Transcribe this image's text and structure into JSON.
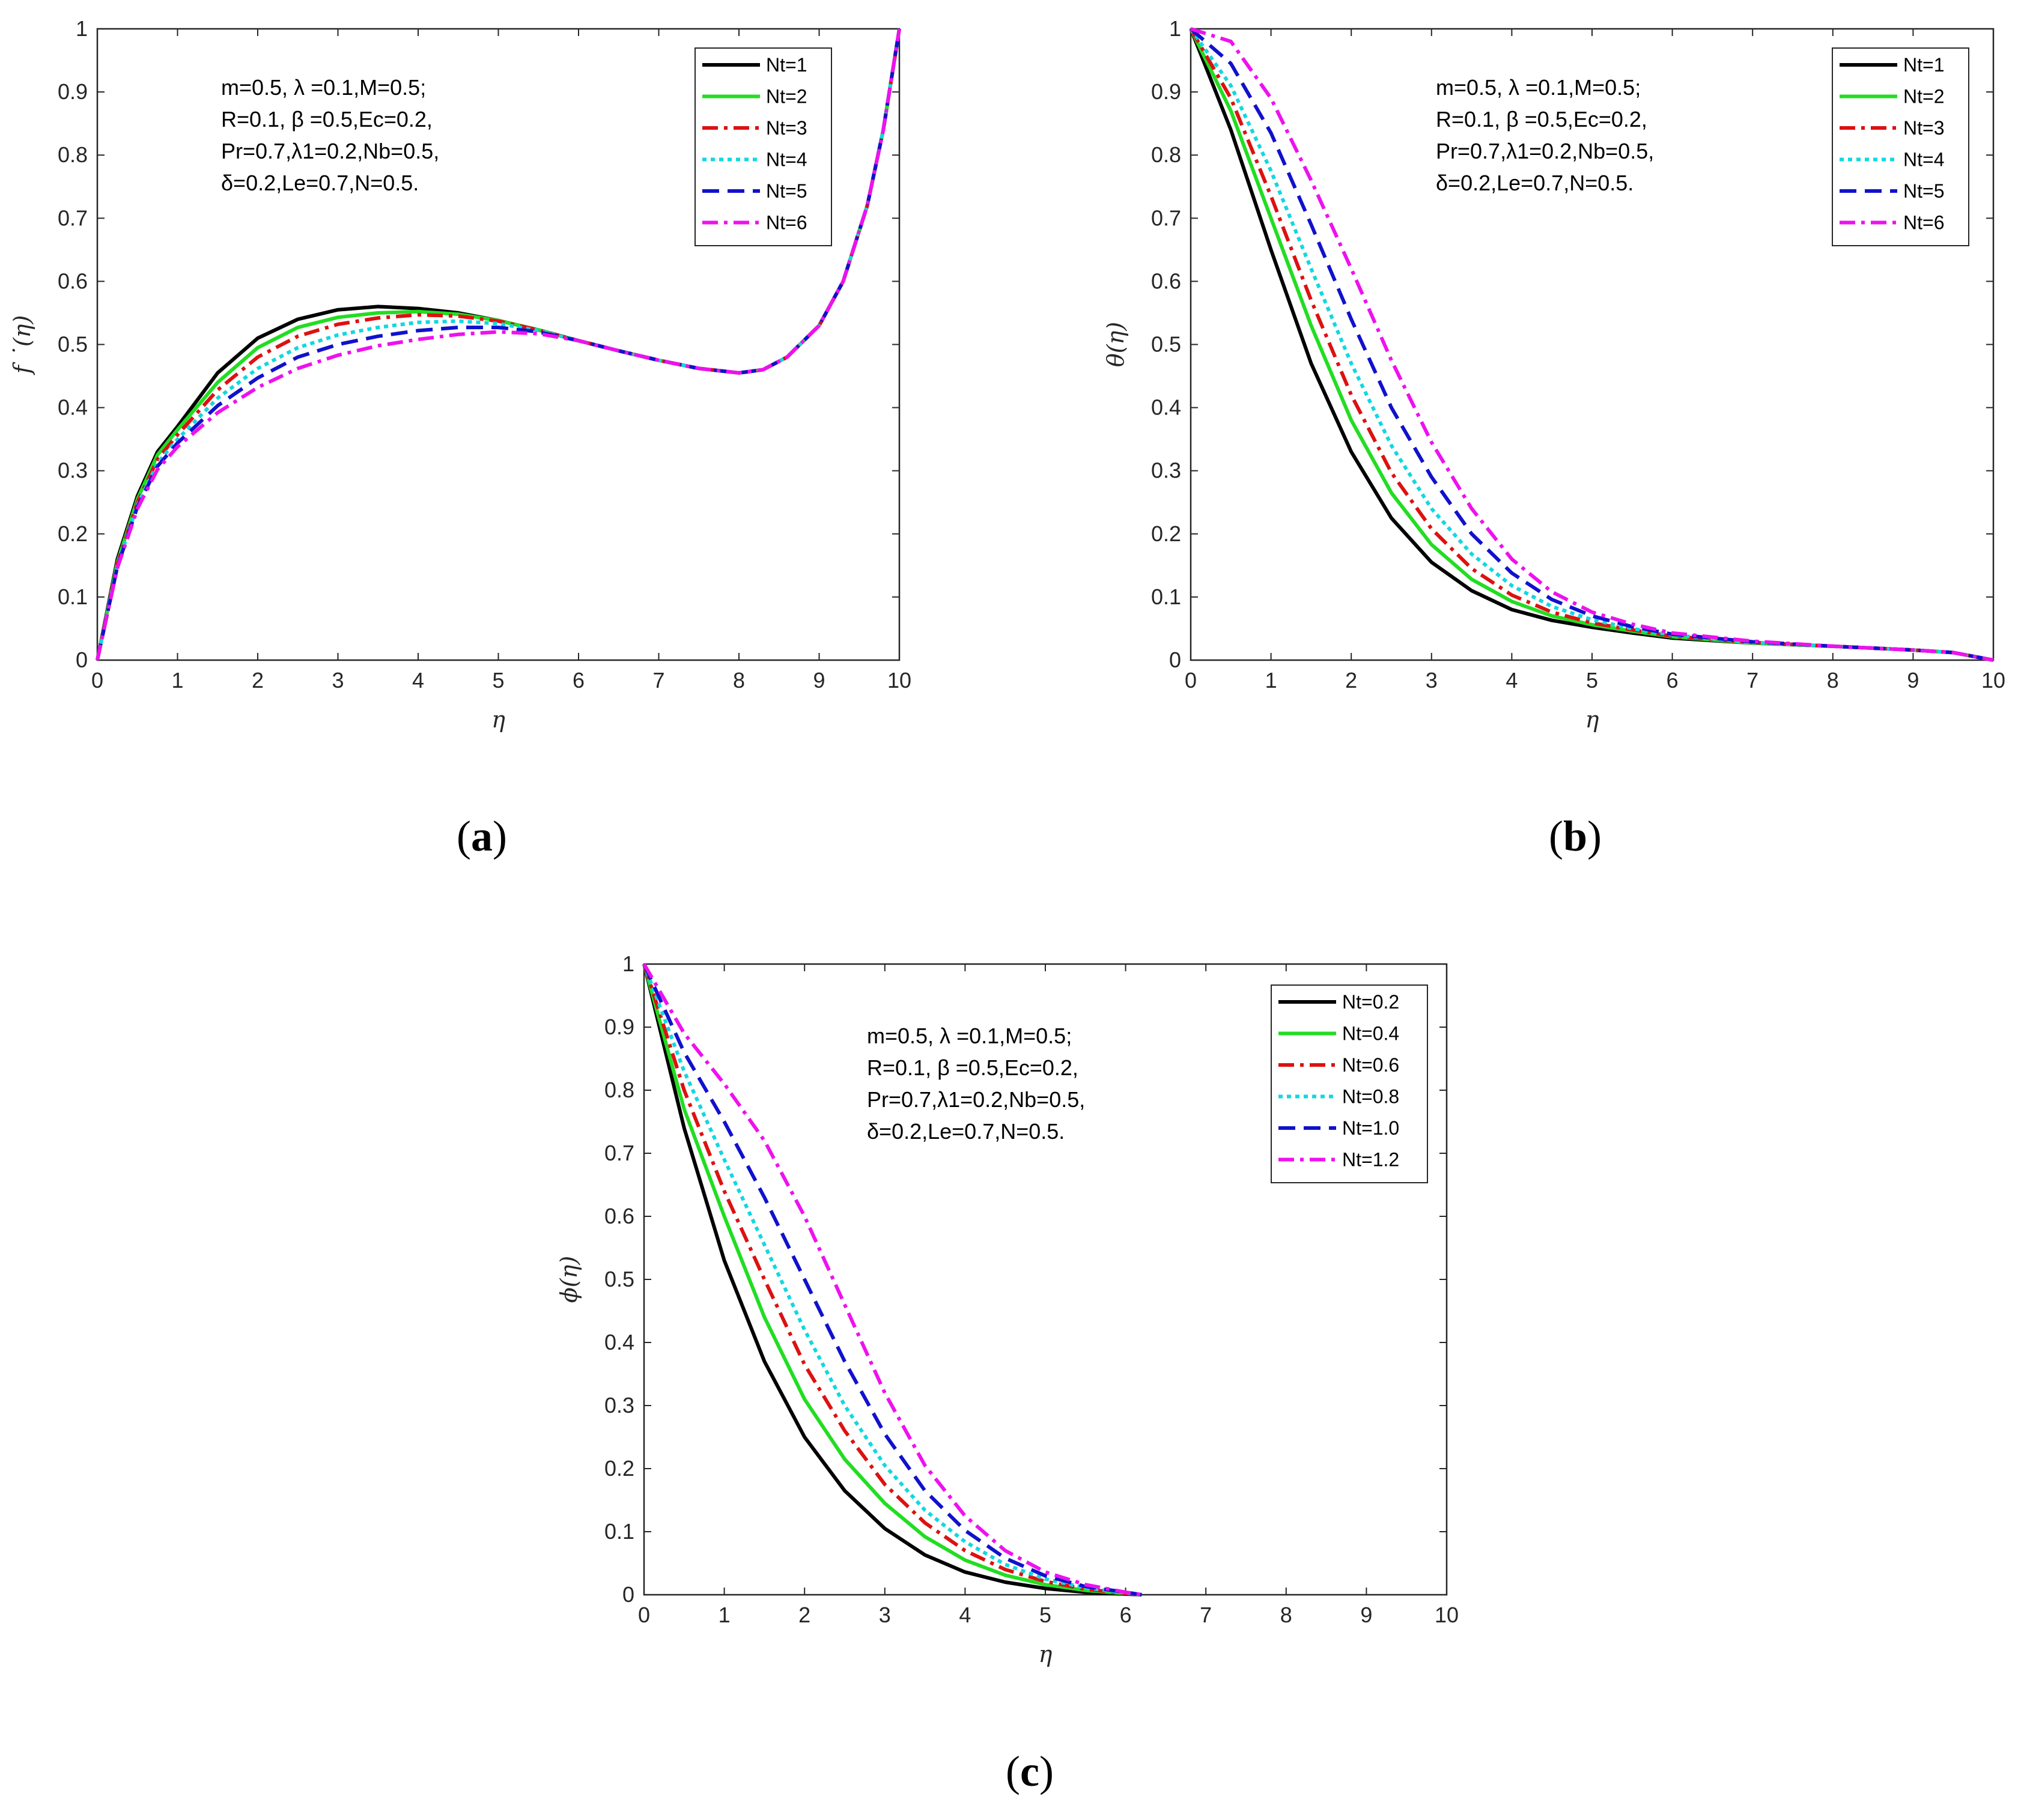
{
  "colors": {
    "black": "#000000",
    "green": "#22dd22",
    "red": "#dd1111",
    "cyan": "#11d8e0",
    "blue": "#1111cc",
    "magenta": "#ee11ee"
  },
  "chart_data": [
    {
      "id": "a",
      "type": "line",
      "panel_label": "a",
      "xlabel": "η",
      "ylabel": "f ˙(η)",
      "xlim": [
        0,
        10
      ],
      "ylim": [
        0,
        1
      ],
      "xticks": [
        "0",
        "1",
        "2",
        "3",
        "4",
        "5",
        "6",
        "7",
        "8",
        "9",
        "10"
      ],
      "yticks": [
        "0",
        "0.1",
        "0.2",
        "0.3",
        "0.4",
        "0.5",
        "0.6",
        "0.7",
        "0.8",
        "0.9",
        "1"
      ],
      "annotation": [
        "m=0.5, λ =0.1,M=0.5;",
        "R=0.1, β =0.5,Ec=0.2,",
        "Pr=0.7,λ1=0.2,Nb=0.5,",
        "δ=0.2,Le=0.7,N=0.5."
      ],
      "legend_position": "top-right",
      "series": [
        {
          "name": "Nt=1",
          "style": "solid",
          "color": "black",
          "x": [
            0,
            0.25,
            0.5,
            0.75,
            1,
            1.5,
            2,
            2.5,
            3,
            3.5,
            4,
            4.5,
            5,
            5.5,
            6,
            6.5,
            7,
            7.5,
            8,
            8.3,
            8.6,
            9,
            9.3,
            9.6,
            9.8,
            10
          ],
          "y": [
            0,
            0.16,
            0.26,
            0.33,
            0.37,
            0.455,
            0.51,
            0.54,
            0.555,
            0.56,
            0.557,
            0.55,
            0.538,
            0.523,
            0.506,
            0.49,
            0.475,
            0.462,
            0.455,
            0.46,
            0.48,
            0.53,
            0.6,
            0.72,
            0.84,
            1.0
          ]
        },
        {
          "name": "Nt=2",
          "style": "solid",
          "color": "green",
          "x": [
            0,
            0.25,
            0.5,
            0.75,
            1,
            1.5,
            2,
            2.5,
            3,
            3.5,
            4,
            4.5,
            5,
            5.5,
            6,
            6.5,
            7,
            7.5,
            8,
            8.3,
            8.6,
            9,
            9.3,
            9.6,
            9.8,
            10
          ],
          "y": [
            0,
            0.155,
            0.255,
            0.325,
            0.365,
            0.44,
            0.495,
            0.527,
            0.543,
            0.55,
            0.552,
            0.548,
            0.538,
            0.523,
            0.506,
            0.49,
            0.475,
            0.462,
            0.455,
            0.46,
            0.48,
            0.53,
            0.6,
            0.72,
            0.84,
            1.0
          ]
        },
        {
          "name": "Nt=3",
          "style": "dashdot",
          "color": "red",
          "x": [
            0,
            0.25,
            0.5,
            0.75,
            1,
            1.5,
            2,
            2.5,
            3,
            3.5,
            4,
            4.5,
            5,
            5.5,
            6,
            6.5,
            7,
            7.5,
            8,
            8.3,
            8.6,
            9,
            9.3,
            9.6,
            9.8,
            10
          ],
          "y": [
            0,
            0.152,
            0.25,
            0.318,
            0.357,
            0.428,
            0.48,
            0.513,
            0.532,
            0.542,
            0.547,
            0.545,
            0.537,
            0.523,
            0.506,
            0.49,
            0.475,
            0.462,
            0.455,
            0.46,
            0.48,
            0.53,
            0.6,
            0.72,
            0.84,
            1.0
          ]
        },
        {
          "name": "Nt=4",
          "style": "dotted",
          "color": "cyan",
          "x": [
            0,
            0.25,
            0.5,
            0.75,
            1,
            1.5,
            2,
            2.5,
            3,
            3.5,
            4,
            4.5,
            5,
            5.5,
            6,
            6.5,
            7,
            7.5,
            8,
            8.3,
            8.6,
            9,
            9.3,
            9.6,
            9.8,
            10
          ],
          "y": [
            0,
            0.15,
            0.246,
            0.312,
            0.35,
            0.415,
            0.462,
            0.495,
            0.515,
            0.527,
            0.535,
            0.537,
            0.533,
            0.522,
            0.506,
            0.49,
            0.475,
            0.462,
            0.455,
            0.46,
            0.48,
            0.53,
            0.6,
            0.72,
            0.84,
            1.0
          ]
        },
        {
          "name": "Nt=5",
          "style": "dashed",
          "color": "blue",
          "x": [
            0,
            0.25,
            0.5,
            0.75,
            1,
            1.5,
            2,
            2.5,
            3,
            3.5,
            4,
            4.5,
            5,
            5.5,
            6,
            6.5,
            7,
            7.5,
            8,
            8.3,
            8.6,
            9,
            9.3,
            9.6,
            9.8,
            10
          ],
          "y": [
            0,
            0.148,
            0.243,
            0.307,
            0.344,
            0.403,
            0.447,
            0.48,
            0.5,
            0.513,
            0.522,
            0.527,
            0.527,
            0.52,
            0.506,
            0.49,
            0.475,
            0.462,
            0.455,
            0.46,
            0.48,
            0.53,
            0.6,
            0.72,
            0.84,
            1.0
          ]
        },
        {
          "name": "Nt=6",
          "style": "dashdot",
          "color": "magenta",
          "x": [
            0,
            0.25,
            0.5,
            0.75,
            1,
            1.5,
            2,
            2.5,
            3,
            3.5,
            4,
            4.5,
            5,
            5.5,
            6,
            6.5,
            7,
            7.5,
            8,
            8.3,
            8.6,
            9,
            9.3,
            9.6,
            9.8,
            10
          ],
          "y": [
            0,
            0.146,
            0.24,
            0.302,
            0.338,
            0.392,
            0.432,
            0.462,
            0.483,
            0.498,
            0.508,
            0.516,
            0.52,
            0.517,
            0.506,
            0.49,
            0.475,
            0.462,
            0.455,
            0.46,
            0.48,
            0.53,
            0.6,
            0.72,
            0.84,
            1.0
          ]
        }
      ]
    },
    {
      "id": "b",
      "type": "line",
      "panel_label": "b",
      "xlabel": "η",
      "ylabel": "θ(η)",
      "xlim": [
        0,
        10
      ],
      "ylim": [
        0,
        1
      ],
      "xticks": [
        "0",
        "1",
        "2",
        "3",
        "4",
        "5",
        "6",
        "7",
        "8",
        "9",
        "10"
      ],
      "yticks": [
        "0",
        "0.1",
        "0.2",
        "0.3",
        "0.4",
        "0.5",
        "0.6",
        "0.7",
        "0.8",
        "0.9",
        "1"
      ],
      "annotation": [
        "m=0.5, λ =0.1,M=0.5;",
        "R=0.1, β =0.5,Ec=0.2,",
        "Pr=0.7,λ1=0.2,Nb=0.5,",
        "δ=0.2,Le=0.7,N=0.5."
      ],
      "legend_position": "top-right",
      "series": [
        {
          "name": "Nt=1",
          "style": "solid",
          "color": "black",
          "x": [
            0,
            0.5,
            1,
            1.5,
            2,
            2.5,
            3,
            3.5,
            4,
            4.5,
            5,
            5.5,
            6,
            7,
            8,
            9,
            9.5,
            10
          ],
          "y": [
            1.0,
            0.84,
            0.65,
            0.47,
            0.33,
            0.225,
            0.155,
            0.11,
            0.08,
            0.063,
            0.052,
            0.043,
            0.035,
            0.027,
            0.022,
            0.016,
            0.012,
            0.0
          ]
        },
        {
          "name": "Nt=2",
          "style": "solid",
          "color": "green",
          "x": [
            0,
            0.5,
            1,
            1.5,
            2,
            2.5,
            3,
            3.5,
            4,
            4.5,
            5,
            5.5,
            6,
            7,
            8,
            9,
            9.5,
            10
          ],
          "y": [
            1.0,
            0.87,
            0.7,
            0.53,
            0.38,
            0.265,
            0.183,
            0.128,
            0.093,
            0.07,
            0.056,
            0.046,
            0.037,
            0.027,
            0.022,
            0.016,
            0.012,
            0.0
          ]
        },
        {
          "name": "Nt=3",
          "style": "dashdot",
          "color": "red",
          "x": [
            0,
            0.5,
            1,
            1.5,
            2,
            2.5,
            3,
            3.5,
            4,
            4.5,
            5,
            5.5,
            6,
            7,
            8,
            9,
            9.5,
            10
          ],
          "y": [
            1.0,
            0.89,
            0.735,
            0.57,
            0.42,
            0.297,
            0.208,
            0.145,
            0.103,
            0.076,
            0.059,
            0.048,
            0.038,
            0.028,
            0.022,
            0.016,
            0.012,
            0.0
          ]
        },
        {
          "name": "Nt=4",
          "style": "dotted",
          "color": "cyan",
          "x": [
            0,
            0.5,
            1,
            1.5,
            2,
            2.5,
            3,
            3.5,
            4,
            4.5,
            5,
            5.5,
            6,
            7,
            8,
            9,
            9.5,
            10
          ],
          "y": [
            1.0,
            0.91,
            0.775,
            0.62,
            0.47,
            0.34,
            0.24,
            0.168,
            0.118,
            0.085,
            0.064,
            0.05,
            0.04,
            0.028,
            0.022,
            0.016,
            0.012,
            0.0
          ]
        },
        {
          "name": "Nt=5",
          "style": "dashed",
          "color": "blue",
          "x": [
            0,
            0.5,
            1,
            1.5,
            2,
            2.5,
            3,
            3.5,
            4,
            4.5,
            5,
            5.5,
            6,
            7,
            8,
            9,
            9.5,
            10
          ],
          "y": [
            1.0,
            0.945,
            0.835,
            0.69,
            0.54,
            0.4,
            0.29,
            0.2,
            0.138,
            0.096,
            0.07,
            0.053,
            0.041,
            0.029,
            0.022,
            0.016,
            0.012,
            0.0
          ]
        },
        {
          "name": "Nt=6",
          "style": "dashdot",
          "color": "magenta",
          "x": [
            0,
            0.5,
            1,
            1.5,
            2,
            2.5,
            3,
            3.5,
            4,
            4.5,
            5,
            5.5,
            6,
            7,
            8,
            9,
            9.5,
            10
          ],
          "y": [
            1.0,
            0.98,
            0.89,
            0.76,
            0.62,
            0.475,
            0.345,
            0.24,
            0.16,
            0.108,
            0.076,
            0.057,
            0.043,
            0.03,
            0.022,
            0.016,
            0.012,
            0.0
          ]
        }
      ]
    },
    {
      "id": "c",
      "type": "line",
      "panel_label": "c",
      "xlabel": "η",
      "ylabel": "ϕ(η)",
      "xlim": [
        0,
        10
      ],
      "ylim": [
        0,
        1
      ],
      "xticks": [
        "0",
        "1",
        "2",
        "3",
        "4",
        "5",
        "6",
        "7",
        "8",
        "9",
        "10"
      ],
      "yticks": [
        "0",
        "0.1",
        "0.2",
        "0.3",
        "0.4",
        "0.5",
        "0.6",
        "0.7",
        "0.8",
        "0.9",
        "1"
      ],
      "annotation": [
        "m=0.5, λ =0.1,M=0.5;",
        "R=0.1, β =0.5,Ec=0.2,",
        "Pr=0.7,λ1=0.2,Nb=0.5,",
        "δ=0.2,Le=0.7,N=0.5."
      ],
      "legend_position": "top-right",
      "series": [
        {
          "name": "Nt=0.2",
          "style": "solid",
          "color": "black",
          "x": [
            0,
            0.5,
            1,
            1.5,
            2,
            2.5,
            3,
            3.5,
            4,
            4.5,
            5,
            5.5,
            6,
            6.2
          ],
          "y": [
            1.0,
            0.74,
            0.53,
            0.37,
            0.25,
            0.165,
            0.105,
            0.063,
            0.036,
            0.02,
            0.01,
            0.004,
            0.001,
            0.0
          ]
        },
        {
          "name": "Nt=0.4",
          "style": "solid",
          "color": "green",
          "x": [
            0,
            0.5,
            1,
            1.5,
            2,
            2.5,
            3,
            3.5,
            4,
            4.5,
            5,
            5.5,
            6,
            6.2
          ],
          "y": [
            1.0,
            0.77,
            0.6,
            0.44,
            0.31,
            0.215,
            0.145,
            0.092,
            0.055,
            0.031,
            0.016,
            0.007,
            0.002,
            0.0
          ]
        },
        {
          "name": "Nt=0.6",
          "style": "dashdot",
          "color": "red",
          "x": [
            0,
            0.5,
            1,
            1.5,
            2,
            2.5,
            3,
            3.5,
            4,
            4.5,
            5,
            5.5,
            6,
            6.2
          ],
          "y": [
            1.0,
            0.8,
            0.64,
            0.5,
            0.365,
            0.26,
            0.175,
            0.114,
            0.07,
            0.04,
            0.021,
            0.009,
            0.002,
            0.0
          ]
        },
        {
          "name": "Nt=0.8",
          "style": "dotted",
          "color": "cyan",
          "x": [
            0,
            0.5,
            1,
            1.5,
            2,
            2.5,
            3,
            3.5,
            4,
            4.5,
            5,
            5.5,
            6,
            6.2
          ],
          "y": [
            1.0,
            0.83,
            0.69,
            0.555,
            0.42,
            0.3,
            0.205,
            0.134,
            0.084,
            0.048,
            0.025,
            0.011,
            0.003,
            0.0
          ]
        },
        {
          "name": "Nt=1.0",
          "style": "dashed",
          "color": "blue",
          "x": [
            0,
            0.5,
            1,
            1.5,
            2,
            2.5,
            3,
            3.5,
            4,
            4.5,
            5,
            5.5,
            6,
            6.2
          ],
          "y": [
            1.0,
            0.86,
            0.75,
            0.63,
            0.5,
            0.37,
            0.255,
            0.165,
            0.102,
            0.058,
            0.03,
            0.013,
            0.004,
            0.0
          ]
        },
        {
          "name": "Nt=1.2",
          "style": "dashdot",
          "color": "magenta",
          "x": [
            0,
            0.5,
            1,
            1.5,
            2,
            2.5,
            3,
            3.5,
            4,
            4.5,
            5,
            5.5,
            6,
            6.2
          ],
          "y": [
            1.0,
            0.89,
            0.81,
            0.72,
            0.6,
            0.46,
            0.32,
            0.205,
            0.125,
            0.07,
            0.036,
            0.016,
            0.004,
            0.0
          ]
        }
      ]
    }
  ]
}
